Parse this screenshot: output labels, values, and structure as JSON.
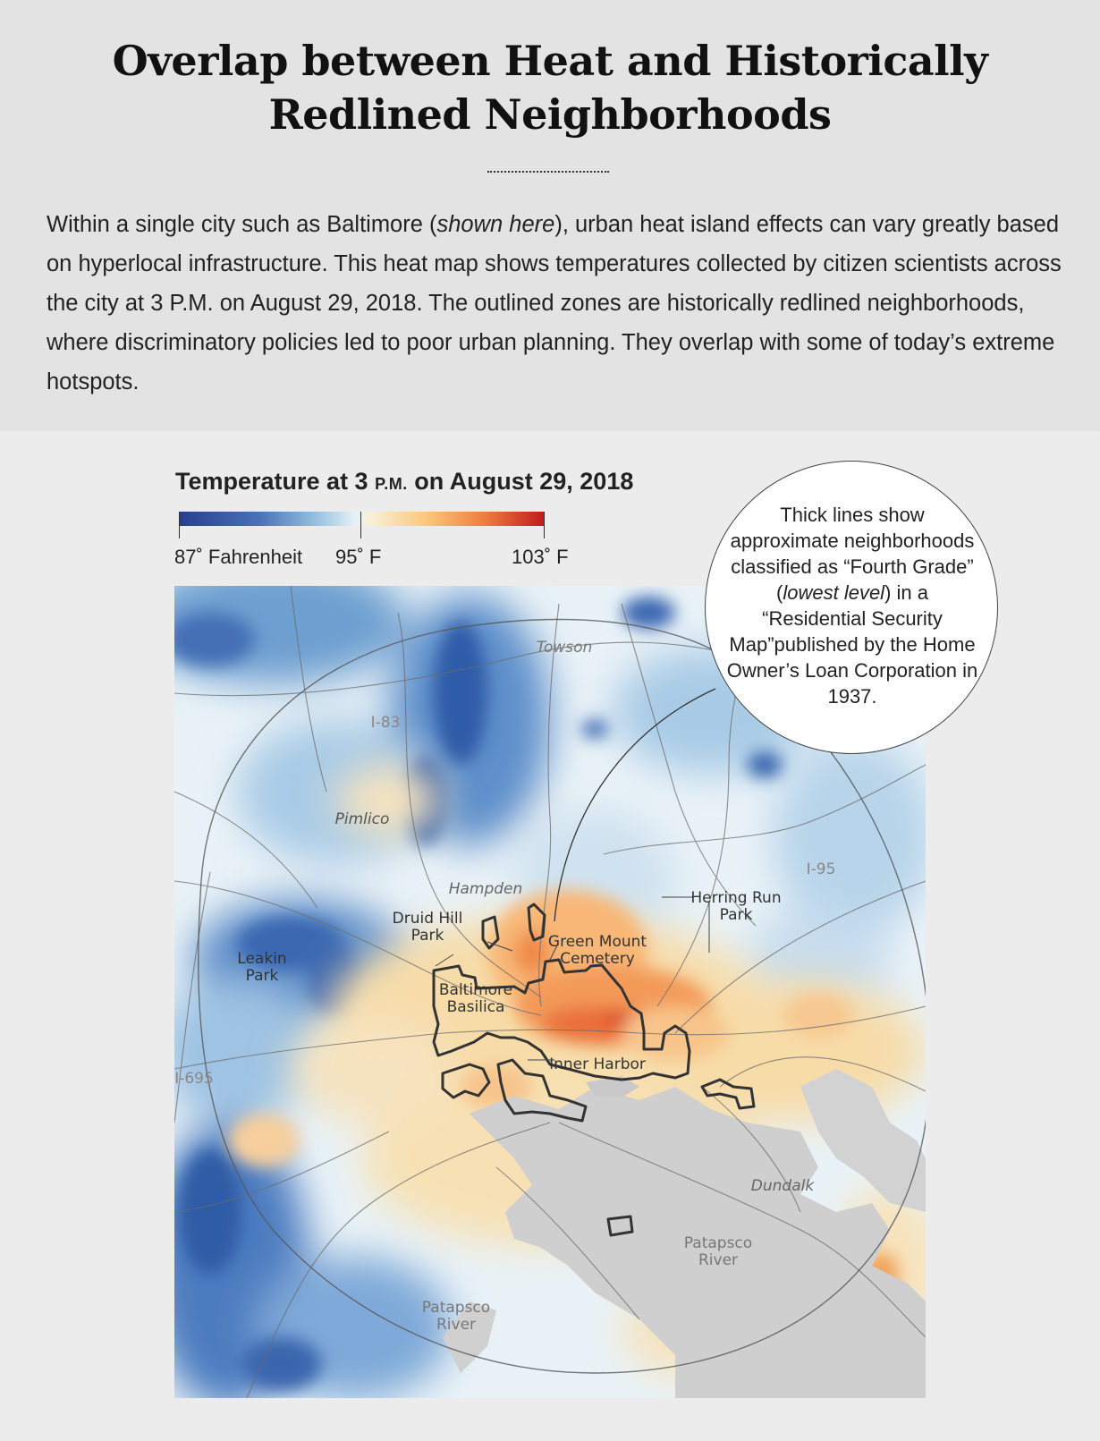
{
  "title": {
    "line1": "Overlap between Heat and Historically",
    "line2": "Redlined Neighborhoods"
  },
  "intro": {
    "part1": "Within a single city such as Baltimore (",
    "emphasis": "shown here",
    "part2": "), urban heat island effects can vary greatly based on hyperlocal infrastructure. This heat map shows temperatures collected by citizen scientists across the city at 3 P.M. on August 29, 2018. The outlined zones are historically redlined neighborhoods, where discriminatory policies led to poor urban planning. They overlap with some of today’s extreme hotspots."
  },
  "legend": {
    "title_prefix": "Temperature at 3 ",
    "title_time": "P.M.",
    "title_suffix": " on August 29, 2018",
    "min_label": "87˚ Fahrenheit",
    "mid_label": "95˚ F",
    "max_label": "103˚ F",
    "min_value": 87,
    "mid_value": 95,
    "max_value": 103,
    "colors": {
      "cold": "#283f8f",
      "mid": "#f4f6f2",
      "hot": "#bf1a1e"
    }
  },
  "callout": {
    "part1": "Thick lines show approximate neighborhoods classified as “Fourth Grade” (",
    "emphasis": "lowest level",
    "part2": ") in a “Residential Security Map”published by the Home Owner’s Loan Corporation in 1937."
  },
  "map": {
    "place_labels": {
      "towson": "Towson",
      "i83": "I-83",
      "pimlico": "Pimlico",
      "i95": "I-95",
      "hampden": "Hampden",
      "herring_run_1": "Herring Run",
      "herring_run_2": "Park",
      "druid_hill_1": "Druid Hill",
      "druid_hill_2": "Park",
      "green_mount_1": "Green Mount",
      "green_mount_2": "Cemetery",
      "leakin_1": "Leakin",
      "leakin_2": "Park",
      "basilica_1": "Baltimore",
      "basilica_2": "Basilica",
      "inner_harbor": "Inner Harbor",
      "i695": "I-695",
      "dundalk": "Dundalk",
      "patapsco_east_1": "Patapsco",
      "patapsco_east_2": "River",
      "patapsco_west_1": "Patapsco",
      "patapsco_west_2": "River"
    }
  }
}
